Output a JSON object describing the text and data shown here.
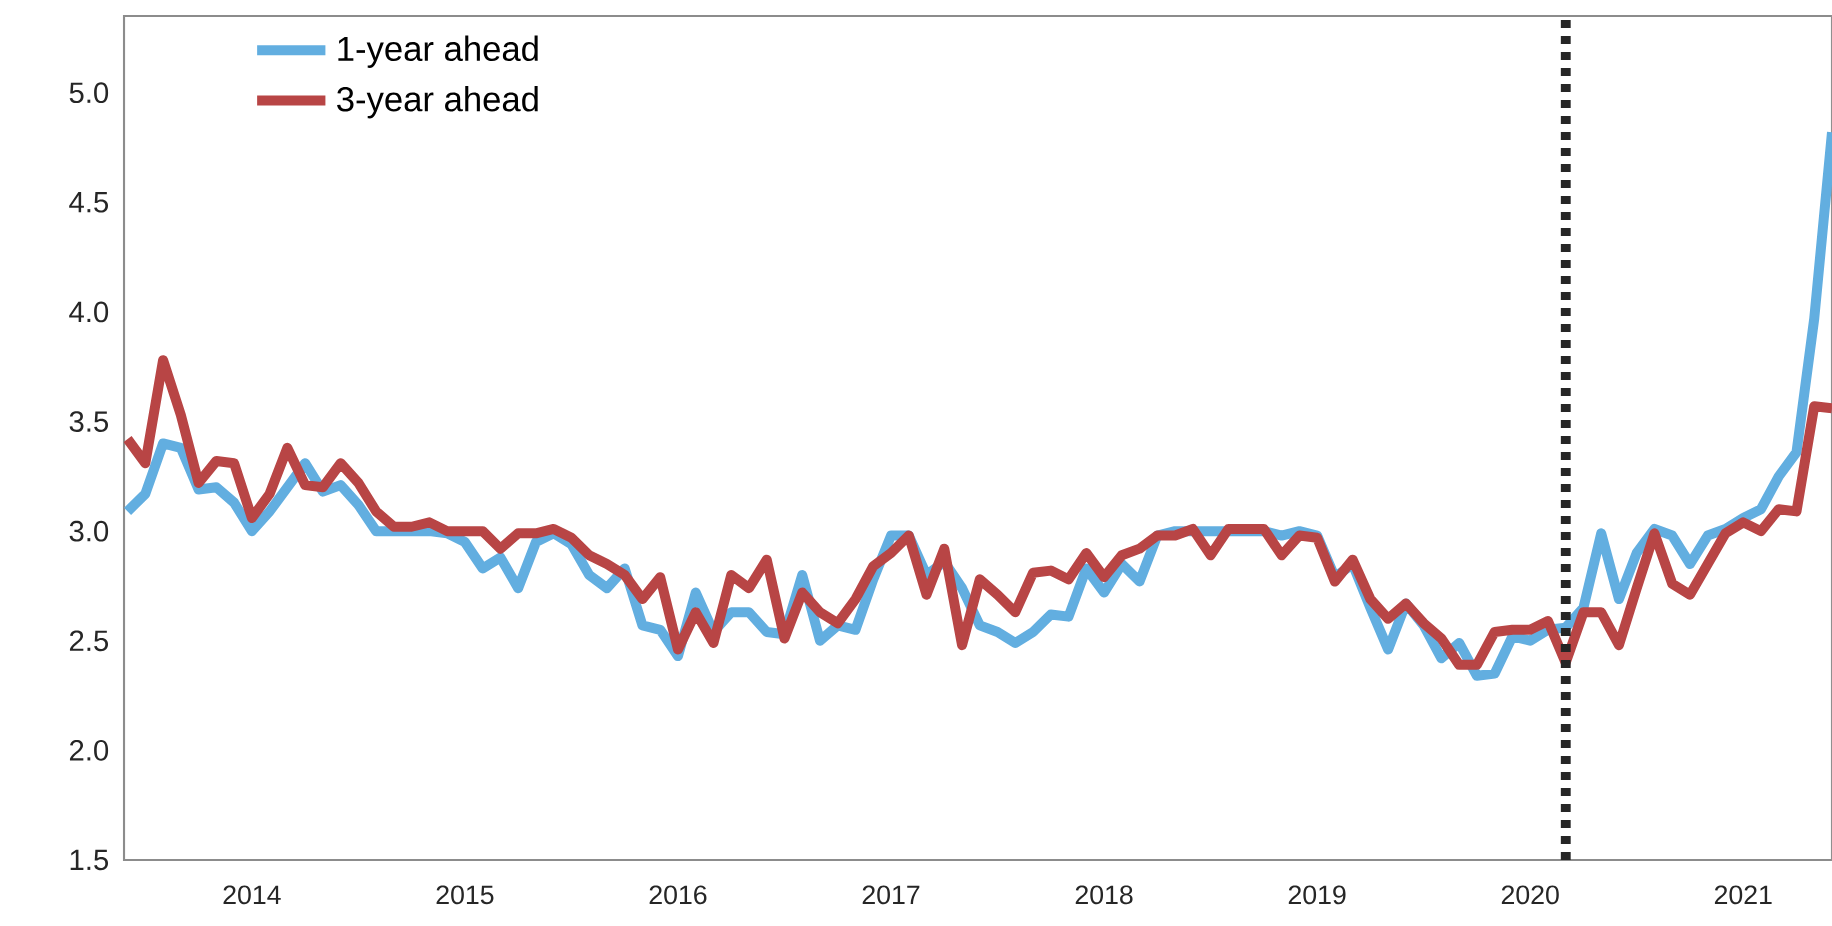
{
  "chart_data": {
    "type": "line",
    "x": [
      "2013-06",
      "2013-07",
      "2013-08",
      "2013-09",
      "2013-10",
      "2013-11",
      "2013-12",
      "2014-01",
      "2014-02",
      "2014-03",
      "2014-04",
      "2014-05",
      "2014-06",
      "2014-07",
      "2014-08",
      "2014-09",
      "2014-10",
      "2014-11",
      "2014-12",
      "2015-01",
      "2015-02",
      "2015-03",
      "2015-04",
      "2015-05",
      "2015-06",
      "2015-07",
      "2015-08",
      "2015-09",
      "2015-10",
      "2015-11",
      "2015-12",
      "2016-01",
      "2016-02",
      "2016-03",
      "2016-04",
      "2016-05",
      "2016-06",
      "2016-07",
      "2016-08",
      "2016-09",
      "2016-10",
      "2016-11",
      "2016-12",
      "2017-01",
      "2017-02",
      "2017-03",
      "2017-04",
      "2017-05",
      "2017-06",
      "2017-07",
      "2017-08",
      "2017-09",
      "2017-10",
      "2017-11",
      "2017-12",
      "2018-01",
      "2018-02",
      "2018-03",
      "2018-04",
      "2018-05",
      "2018-06",
      "2018-07",
      "2018-08",
      "2018-09",
      "2018-10",
      "2018-11",
      "2018-12",
      "2019-01",
      "2019-02",
      "2019-03",
      "2019-04",
      "2019-05",
      "2019-06",
      "2019-07",
      "2019-08",
      "2019-09",
      "2019-10",
      "2019-11",
      "2019-12",
      "2020-01",
      "2020-02",
      "2020-03",
      "2020-04",
      "2020-05",
      "2020-06",
      "2020-07",
      "2020-08",
      "2020-09",
      "2020-10",
      "2020-11",
      "2020-12",
      "2021-01",
      "2021-02",
      "2021-03",
      "2021-04",
      "2021-05",
      "2021-06"
    ],
    "series": [
      {
        "name": "1-year ahead",
        "color": "#62aee0",
        "values": [
          3.09,
          3.17,
          3.4,
          3.38,
          3.19,
          3.2,
          3.13,
          3.0,
          3.09,
          3.2,
          3.31,
          3.18,
          3.21,
          3.12,
          3.0,
          3.0,
          3.0,
          3.0,
          2.99,
          2.95,
          2.83,
          2.88,
          2.74,
          2.95,
          2.99,
          2.94,
          2.8,
          2.74,
          2.83,
          2.57,
          2.55,
          2.43,
          2.72,
          2.54,
          2.63,
          2.63,
          2.54,
          2.53,
          2.8,
          2.5,
          2.57,
          2.55,
          2.78,
          2.98,
          2.98,
          2.8,
          2.86,
          2.74,
          2.57,
          2.54,
          2.49,
          2.54,
          2.62,
          2.61,
          2.83,
          2.72,
          2.85,
          2.77,
          2.98,
          3.0,
          3.0,
          3.0,
          3.0,
          3.0,
          3.0,
          2.98,
          3.0,
          2.98,
          2.79,
          2.85,
          2.65,
          2.46,
          2.67,
          2.57,
          2.42,
          2.49,
          2.34,
          2.35,
          2.52,
          2.5,
          2.55,
          2.56,
          2.65,
          2.99,
          2.69,
          2.9,
          3.01,
          2.98,
          2.85,
          2.98,
          3.01,
          3.06,
          3.1,
          3.25,
          3.36,
          3.97,
          4.82
        ]
      },
      {
        "name": "3-year ahead",
        "color": "#b84545",
        "values": [
          3.42,
          3.31,
          3.78,
          3.53,
          3.22,
          3.32,
          3.31,
          3.06,
          3.17,
          3.38,
          3.21,
          3.2,
          3.31,
          3.22,
          3.09,
          3.02,
          3.02,
          3.04,
          3.0,
          3.0,
          3.0,
          2.92,
          2.99,
          2.99,
          3.01,
          2.97,
          2.89,
          2.85,
          2.8,
          2.69,
          2.79,
          2.46,
          2.63,
          2.49,
          2.8,
          2.74,
          2.87,
          2.51,
          2.72,
          2.63,
          2.58,
          2.69,
          2.84,
          2.9,
          2.98,
          2.71,
          2.92,
          2.48,
          2.78,
          2.71,
          2.63,
          2.81,
          2.82,
          2.78,
          2.9,
          2.79,
          2.89,
          2.92,
          2.98,
          2.98,
          3.01,
          2.89,
          3.01,
          3.01,
          3.01,
          2.89,
          2.98,
          2.97,
          2.77,
          2.87,
          2.69,
          2.6,
          2.67,
          2.58,
          2.51,
          2.39,
          2.39,
          2.54,
          2.55,
          2.55,
          2.59,
          2.4,
          2.63,
          2.63,
          2.48,
          2.74,
          2.99,
          2.76,
          2.71,
          2.85,
          2.99,
          3.04,
          3.0,
          3.1,
          3.09,
          3.57,
          3.56
        ]
      }
    ],
    "xlim": [
      "2013-06",
      "2021-06"
    ],
    "xticks": [
      {
        "value": "2014-01",
        "label": "2014"
      },
      {
        "value": "2015-01",
        "label": "2015"
      },
      {
        "value": "2016-01",
        "label": "2016"
      },
      {
        "value": "2017-01",
        "label": "2017"
      },
      {
        "value": "2018-01",
        "label": "2018"
      },
      {
        "value": "2019-01",
        "label": "2019"
      },
      {
        "value": "2020-01",
        "label": "2020"
      },
      {
        "value": "2021-01",
        "label": "2021"
      }
    ],
    "ylim": [
      1.5,
      5.35
    ],
    "yticks": [
      1.5,
      {
        "value": 2,
        "label": "2.0"
      },
      2.5,
      {
        "value": 3,
        "label": "3.0"
      },
      3.5,
      {
        "value": 4,
        "label": "4.0"
      },
      4.5,
      {
        "value": 5,
        "label": "5.0"
      }
    ],
    "ref_lines": [
      {
        "axis": "x",
        "value": "2020-03",
        "color": "#262626",
        "line_style": "dotted"
      }
    ],
    "legend": "top left",
    "grid": false,
    "line_style": "solid"
  }
}
